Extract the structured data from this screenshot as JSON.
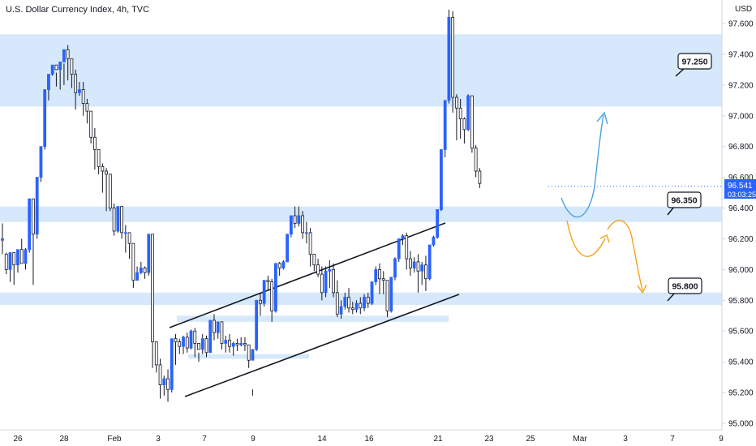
{
  "chart_data": {
    "type": "candlestick",
    "title": "U.S. Dollar Currency Index, 4h, TVC",
    "currency": "USD",
    "ylim": [
      95.0,
      97.7
    ],
    "yticks": [
      "97.600",
      "97.400",
      "97.200",
      "97.000",
      "96.800",
      "96.600",
      "96.400",
      "96.200",
      "96.000",
      "95.800",
      "95.600",
      "95.400",
      "95.200",
      "95.000"
    ],
    "xticks": [
      "26",
      "28",
      "Feb",
      "3",
      "7",
      "9",
      "14",
      "16",
      "21",
      "23",
      "25",
      "Mar",
      "3",
      "7",
      "9"
    ],
    "last_price": {
      "value": "96.541",
      "countdown": "03:03:25",
      "color": "#2962ff"
    },
    "zones": [
      {
        "from": 97.06,
        "to": 97.53
      },
      {
        "from": 96.31,
        "to": 96.41
      },
      {
        "from": 95.77,
        "to": 95.85
      },
      {
        "from": 95.66,
        "to": 95.7
      },
      {
        "from": 95.42,
        "to": 95.45
      }
    ],
    "levels": [
      "97.250",
      "96.350",
      "95.800"
    ],
    "channel": {
      "upper": [
        [
          95.66,
          96.35
        ]
      ],
      "lower": [
        [
          95.17,
          95.86
        ]
      ]
    },
    "colors": {
      "up": "#2962ff",
      "down": "#ffffff",
      "wick": "#131722",
      "zone": "#d6e8fb",
      "bullish_path": "#4aa3df",
      "bearish_path": "#f4a21d"
    },
    "candles": [
      [
        96.19,
        96.3,
        96.2,
        96.1
      ],
      [
        96.1,
        96.11,
        96.0,
        95.97
      ],
      [
        96.0,
        96.1,
        96.11,
        95.92
      ],
      [
        96.11,
        96.1,
        96.03,
        95.9
      ],
      [
        96.03,
        96.12,
        96.13,
        95.98
      ],
      [
        96.13,
        96.2,
        96.04,
        96.04
      ],
      [
        96.04,
        96.14,
        96.13,
        96.0
      ],
      [
        96.13,
        96.46,
        96.46,
        96.11
      ],
      [
        96.46,
        96.4,
        96.23,
        95.9
      ],
      [
        96.23,
        96.6,
        96.6,
        96.2
      ],
      [
        96.6,
        96.8,
        96.8,
        96.57
      ],
      [
        96.8,
        97.17,
        97.17,
        96.78
      ],
      [
        97.17,
        97.25,
        97.27,
        97.1
      ],
      [
        97.27,
        97.32,
        97.33,
        97.26
      ],
      [
        97.33,
        97.28,
        97.3,
        97.19
      ],
      [
        97.3,
        97.35,
        97.35,
        97.17
      ],
      [
        97.35,
        97.34,
        97.43,
        97.2
      ],
      [
        97.43,
        97.46,
        97.37,
        97.23
      ],
      [
        97.37,
        97.33,
        97.27,
        97.18
      ],
      [
        97.27,
        97.3,
        97.15,
        97.04
      ],
      [
        97.15,
        97.22,
        97.17,
        97.13
      ],
      [
        97.17,
        97.22,
        97.08,
        97.0
      ],
      [
        97.08,
        97.11,
        97.03,
        96.95
      ],
      [
        97.03,
        97.03,
        96.86,
        96.82
      ],
      [
        96.86,
        96.92,
        96.78,
        96.65
      ],
      [
        96.78,
        96.77,
        96.67,
        96.62
      ],
      [
        96.67,
        96.69,
        96.64,
        96.5
      ],
      [
        96.64,
        96.66,
        96.62,
        96.38
      ],
      [
        96.62,
        96.56,
        96.4,
        96.38
      ],
      [
        96.4,
        96.43,
        96.25,
        96.22
      ],
      [
        96.25,
        96.3,
        96.41,
        96.24
      ],
      [
        96.41,
        96.36,
        96.24,
        96.2
      ],
      [
        96.24,
        96.29,
        96.24,
        96.11
      ],
      [
        96.24,
        96.23,
        96.17,
        96.07
      ],
      [
        96.17,
        96.04,
        95.93,
        95.88
      ],
      [
        95.93,
        96.02,
        95.98,
        95.96
      ],
      [
        95.98,
        96.05,
        96.01,
        95.97
      ],
      [
        96.01,
        96.02,
        95.98,
        95.94
      ],
      [
        95.98,
        96.19,
        96.23,
        95.96
      ],
      [
        96.23,
        95.87,
        95.53,
        95.36
      ],
      [
        95.53,
        95.44,
        95.38,
        95.33
      ],
      [
        95.38,
        95.42,
        95.25,
        95.16
      ],
      [
        95.25,
        95.31,
        95.29,
        95.18
      ],
      [
        95.29,
        95.35,
        95.22,
        95.14
      ],
      [
        95.22,
        95.54,
        95.55,
        95.2
      ],
      [
        95.55,
        95.58,
        95.53,
        95.38
      ],
      [
        95.53,
        95.55,
        95.5,
        95.45
      ],
      [
        95.5,
        95.57,
        95.56,
        95.45
      ],
      [
        95.56,
        95.59,
        95.49,
        95.46
      ],
      [
        95.49,
        95.61,
        95.6,
        95.48
      ],
      [
        95.6,
        95.62,
        95.52,
        95.43
      ],
      [
        95.52,
        95.46,
        95.48,
        95.4
      ],
      [
        95.48,
        95.58,
        95.55,
        95.45
      ],
      [
        95.55,
        95.57,
        95.46,
        95.43
      ],
      [
        95.46,
        95.66,
        95.67,
        95.46
      ],
      [
        95.67,
        95.71,
        95.59,
        95.54
      ],
      [
        95.59,
        95.63,
        95.66,
        95.55
      ],
      [
        95.66,
        95.64,
        95.52,
        95.48
      ],
      [
        95.52,
        95.57,
        95.54,
        95.46
      ],
      [
        95.54,
        95.58,
        95.5,
        95.46
      ],
      [
        95.5,
        95.53,
        95.52,
        95.44
      ],
      [
        95.52,
        95.55,
        95.51,
        95.47
      ],
      [
        95.51,
        95.56,
        95.52,
        95.5
      ],
      [
        95.52,
        95.56,
        95.51,
        95.47
      ],
      [
        95.51,
        95.47,
        95.41,
        95.36
      ],
      [
        95.41,
        95.22,
        95.48,
        95.18
      ],
      [
        95.48,
        95.79,
        95.8,
        95.47
      ],
      [
        95.8,
        95.85,
        95.78,
        95.7
      ],
      [
        95.78,
        95.93,
        95.93,
        95.76
      ],
      [
        95.93,
        95.96,
        95.92,
        95.87
      ],
      [
        95.92,
        95.94,
        95.73,
        95.66
      ],
      [
        95.73,
        96.04,
        96.04,
        95.72
      ],
      [
        96.04,
        96.05,
        96.01,
        95.96
      ],
      [
        96.01,
        96.06,
        96.05,
        96.0
      ],
      [
        96.05,
        96.21,
        96.23,
        96.05
      ],
      [
        96.23,
        96.34,
        96.35,
        96.21
      ],
      [
        96.35,
        96.41,
        96.3,
        96.27
      ],
      [
        96.3,
        96.41,
        96.35,
        96.28
      ],
      [
        96.35,
        96.38,
        96.24,
        96.2
      ],
      [
        96.24,
        96.31,
        96.24,
        96.17
      ],
      [
        96.24,
        96.27,
        96.1,
        96.02
      ],
      [
        96.1,
        96.1,
        96.03,
        95.99
      ],
      [
        96.03,
        96.07,
        95.97,
        95.95
      ],
      [
        95.97,
        96.02,
        95.85,
        95.8
      ],
      [
        95.85,
        96.02,
        95.99,
        95.82
      ],
      [
        95.99,
        96.06,
        96.0,
        95.88
      ],
      [
        96.0,
        96.04,
        95.85,
        95.82
      ],
      [
        95.85,
        95.93,
        95.71,
        95.69
      ],
      [
        95.71,
        95.8,
        95.76,
        95.68
      ],
      [
        95.76,
        95.85,
        95.82,
        95.74
      ],
      [
        95.82,
        95.88,
        95.75,
        95.72
      ],
      [
        95.75,
        95.79,
        95.74,
        95.71
      ],
      [
        95.74,
        95.8,
        95.78,
        95.72
      ],
      [
        95.78,
        95.82,
        95.75,
        95.71
      ],
      [
        95.75,
        95.84,
        95.82,
        95.73
      ],
      [
        95.82,
        95.85,
        95.78,
        95.75
      ],
      [
        95.78,
        95.92,
        95.92,
        95.77
      ],
      [
        95.92,
        96.02,
        96.0,
        95.9
      ],
      [
        96.0,
        96.04,
        95.94,
        95.84
      ],
      [
        95.94,
        95.99,
        95.93,
        95.84
      ],
      [
        95.93,
        95.91,
        95.73,
        95.69
      ],
      [
        95.73,
        95.95,
        95.95,
        95.72
      ],
      [
        95.95,
        96.08,
        96.07,
        95.93
      ],
      [
        96.07,
        96.2,
        96.2,
        96.05
      ],
      [
        96.2,
        96.23,
        96.22,
        96.16
      ],
      [
        96.22,
        96.24,
        96.07,
        96.0
      ],
      [
        96.07,
        96.12,
        96.01,
        95.96
      ],
      [
        96.01,
        96.08,
        96.05,
        95.98
      ],
      [
        96.05,
        96.1,
        95.99,
        95.85
      ],
      [
        95.99,
        96.05,
        96.03,
        95.9
      ],
      [
        96.03,
        96.09,
        95.94,
        95.86
      ],
      [
        95.94,
        96.16,
        96.16,
        95.93
      ],
      [
        96.16,
        96.22,
        96.21,
        96.15
      ],
      [
        96.21,
        96.39,
        96.39,
        96.2
      ],
      [
        96.39,
        96.78,
        96.78,
        96.38
      ],
      [
        96.78,
        97.09,
        97.1,
        96.73
      ],
      [
        97.1,
        97.69,
        97.64,
        97.08
      ],
      [
        97.64,
        97.68,
        97.12,
        97.02
      ],
      [
        97.12,
        97.14,
        97.05,
        96.84
      ],
      [
        97.05,
        97.11,
        96.98,
        96.85
      ],
      [
        96.98,
        96.99,
        96.91,
        96.82
      ],
      [
        96.91,
        97.14,
        97.13,
        96.9
      ],
      [
        97.13,
        97.13,
        96.79,
        96.76
      ],
      [
        96.79,
        96.81,
        96.64,
        96.6
      ],
      [
        96.64,
        96.66,
        96.56,
        96.53
      ]
    ]
  }
}
